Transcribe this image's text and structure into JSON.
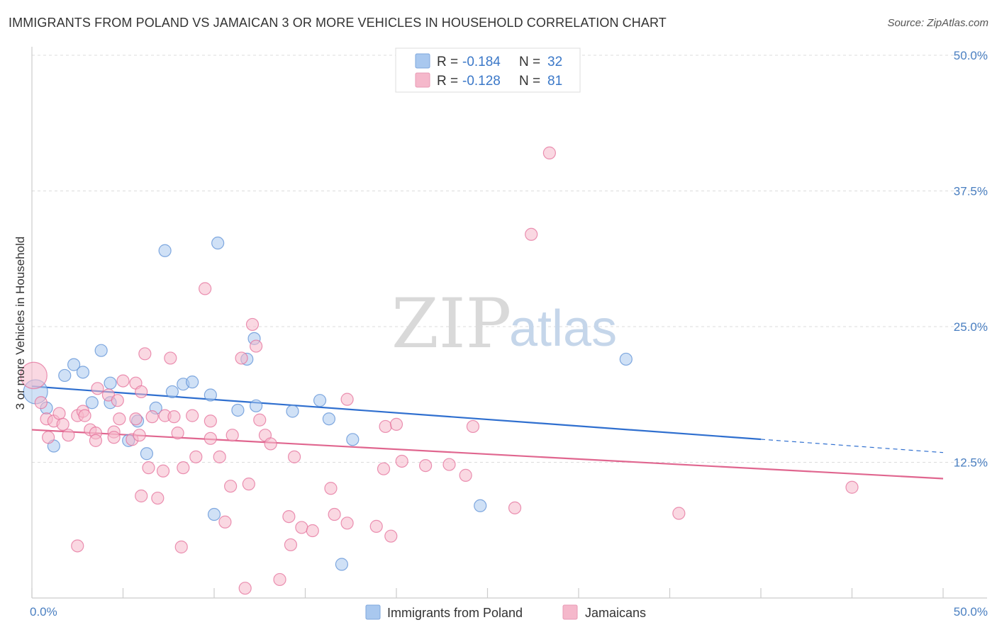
{
  "header": {
    "title": "IMMIGRANTS FROM POLAND VS JAMAICAN 3 OR MORE VEHICLES IN HOUSEHOLD CORRELATION CHART",
    "source": "Source: ZipAtlas.com"
  },
  "watermark": {
    "zip": "ZIP",
    "atlas": "atlas"
  },
  "legend": {
    "rows": [
      {
        "r_label": "R =",
        "r_value": "-0.184",
        "n_label": "N =",
        "n_value": "32",
        "color": "#a9c8ef"
      },
      {
        "r_label": "R =",
        "r_value": "-0.128",
        "n_label": "N =",
        "n_value": "81",
        "color": "#f5b8cb"
      }
    ]
  },
  "bottom_legend": {
    "items": [
      {
        "label": "Immigrants from Poland",
        "color": "#a9c8ef"
      },
      {
        "label": "Jamaicans",
        "color": "#f5b8cb"
      }
    ]
  },
  "chart_data": {
    "type": "scatter",
    "title": "IMMIGRANTS FROM POLAND VS JAMAICAN 3 OR MORE VEHICLES IN HOUSEHOLD CORRELATION CHART",
    "xlabel": "",
    "ylabel": "3 or more Vehicles in Household",
    "xlim": [
      0,
      50
    ],
    "ylim": [
      0,
      50
    ],
    "x_tick_labels": [
      "0.0%",
      "50.0%"
    ],
    "y_ticks": [
      12.5,
      25.0,
      37.5,
      50.0
    ],
    "y_tick_labels": [
      "12.5%",
      "25.0%",
      "37.5%",
      "50.0%"
    ],
    "grid": true,
    "legend_position": "top-center",
    "series": [
      {
        "name": "Immigrants from Poland",
        "color": "#5b8fd6",
        "fill": "#a9c8ef",
        "trend": {
          "x": [
            0,
            40,
            50
          ],
          "y": [
            19.5,
            15.0,
            13.4
          ],
          "solid_until": 40
        },
        "points": [
          [
            0.2,
            19.0,
            2.0
          ],
          [
            0.8,
            17.5,
            1
          ],
          [
            1.2,
            14.0,
            1
          ],
          [
            1.8,
            20.5,
            1
          ],
          [
            2.3,
            21.5,
            1
          ],
          [
            2.8,
            20.8,
            1
          ],
          [
            3.3,
            18.0,
            1
          ],
          [
            3.8,
            22.8,
            1
          ],
          [
            4.3,
            19.8,
            1
          ],
          [
            4.3,
            18.0,
            1
          ],
          [
            5.3,
            14.5,
            1
          ],
          [
            5.8,
            16.3,
            1
          ],
          [
            6.3,
            13.3,
            1
          ],
          [
            6.8,
            17.5,
            1
          ],
          [
            7.3,
            32.0,
            1
          ],
          [
            7.7,
            19.0,
            1
          ],
          [
            8.3,
            19.7,
            1
          ],
          [
            8.8,
            19.9,
            1
          ],
          [
            9.8,
            18.7,
            1
          ],
          [
            10.2,
            32.7,
            1
          ],
          [
            11.3,
            17.3,
            1
          ],
          [
            11.8,
            22.0,
            1
          ],
          [
            12.2,
            23.9,
            1
          ],
          [
            12.3,
            17.7,
            1
          ],
          [
            14.3,
            17.2,
            1
          ],
          [
            15.8,
            18.2,
            1
          ],
          [
            16.3,
            16.5,
            1
          ],
          [
            17.0,
            3.1,
            1
          ],
          [
            17.6,
            14.6,
            1
          ],
          [
            24.6,
            8.5,
            1
          ],
          [
            10.0,
            7.7,
            1
          ],
          [
            32.6,
            22.0,
            1
          ]
        ]
      },
      {
        "name": "Jamaicans",
        "color": "#e46f9a",
        "fill": "#f5b8cb",
        "trend": {
          "x": [
            0,
            50
          ],
          "y": [
            15.5,
            11.0
          ],
          "solid_until": 50
        },
        "points": [
          [
            0.1,
            20.5,
            2.2
          ],
          [
            0.5,
            18.0,
            1
          ],
          [
            0.8,
            16.5,
            1
          ],
          [
            0.9,
            14.8,
            1
          ],
          [
            1.2,
            16.3,
            1
          ],
          [
            1.5,
            17.0,
            1
          ],
          [
            1.7,
            16.0,
            1
          ],
          [
            2.0,
            15.0,
            1
          ],
          [
            2.5,
            16.8,
            1
          ],
          [
            2.8,
            17.2,
            1
          ],
          [
            2.5,
            4.8,
            1
          ],
          [
            2.9,
            16.8,
            1
          ],
          [
            3.2,
            15.5,
            1
          ],
          [
            3.5,
            15.2,
            1
          ],
          [
            3.5,
            14.5,
            1
          ],
          [
            3.6,
            19.3,
            1
          ],
          [
            4.2,
            18.7,
            1
          ],
          [
            4.5,
            15.3,
            1
          ],
          [
            4.5,
            14.8,
            1
          ],
          [
            4.7,
            18.2,
            1
          ],
          [
            4.8,
            16.5,
            1
          ],
          [
            5.0,
            20.0,
            1
          ],
          [
            5.5,
            14.6,
            1
          ],
          [
            5.7,
            16.5,
            1
          ],
          [
            5.7,
            19.8,
            1
          ],
          [
            5.9,
            15.0,
            1
          ],
          [
            6.0,
            19.0,
            1
          ],
          [
            6.2,
            22.5,
            1
          ],
          [
            6.4,
            12.0,
            1
          ],
          [
            6.6,
            16.7,
            1
          ],
          [
            6.0,
            9.4,
            1
          ],
          [
            6.9,
            9.2,
            1
          ],
          [
            7.2,
            11.7,
            1
          ],
          [
            7.3,
            16.8,
            1
          ],
          [
            7.8,
            16.7,
            1
          ],
          [
            8.0,
            15.2,
            1
          ],
          [
            8.3,
            12.0,
            1
          ],
          [
            7.6,
            22.1,
            1
          ],
          [
            8.8,
            16.8,
            1
          ],
          [
            8.2,
            4.7,
            1
          ],
          [
            9.0,
            13.0,
            1
          ],
          [
            9.5,
            28.5,
            1
          ],
          [
            9.8,
            16.3,
            1
          ],
          [
            9.8,
            14.7,
            1
          ],
          [
            10.3,
            13.0,
            1
          ],
          [
            10.6,
            7.0,
            1
          ],
          [
            10.9,
            10.3,
            1
          ],
          [
            11.0,
            15.0,
            1
          ],
          [
            11.5,
            22.1,
            1
          ],
          [
            11.7,
            0.9,
            1
          ],
          [
            11.9,
            10.5,
            1
          ],
          [
            12.1,
            25.2,
            1
          ],
          [
            12.3,
            23.2,
            1
          ],
          [
            12.5,
            16.4,
            1
          ],
          [
            12.8,
            15.0,
            1
          ],
          [
            13.1,
            14.2,
            1
          ],
          [
            13.6,
            1.7,
            1
          ],
          [
            14.1,
            7.5,
            1
          ],
          [
            14.2,
            4.9,
            1
          ],
          [
            14.4,
            13.0,
            1
          ],
          [
            14.8,
            6.5,
            1
          ],
          [
            15.4,
            6.2,
            1
          ],
          [
            16.4,
            10.1,
            1
          ],
          [
            16.6,
            7.7,
            1
          ],
          [
            17.3,
            18.3,
            1
          ],
          [
            17.3,
            6.9,
            1
          ],
          [
            18.9,
            6.6,
            1
          ],
          [
            19.3,
            11.9,
            1
          ],
          [
            19.4,
            15.8,
            1
          ],
          [
            19.7,
            5.7,
            1
          ],
          [
            20.0,
            16.0,
            1
          ],
          [
            20.3,
            12.6,
            1
          ],
          [
            21.6,
            12.2,
            1
          ],
          [
            22.9,
            12.3,
            1
          ],
          [
            23.8,
            11.3,
            1
          ],
          [
            24.2,
            15.8,
            1
          ],
          [
            26.5,
            8.3,
            1
          ],
          [
            27.4,
            33.5,
            1
          ],
          [
            28.4,
            41.0,
            1
          ],
          [
            35.5,
            7.8,
            1
          ],
          [
            45.0,
            10.2,
            1
          ]
        ]
      }
    ]
  }
}
